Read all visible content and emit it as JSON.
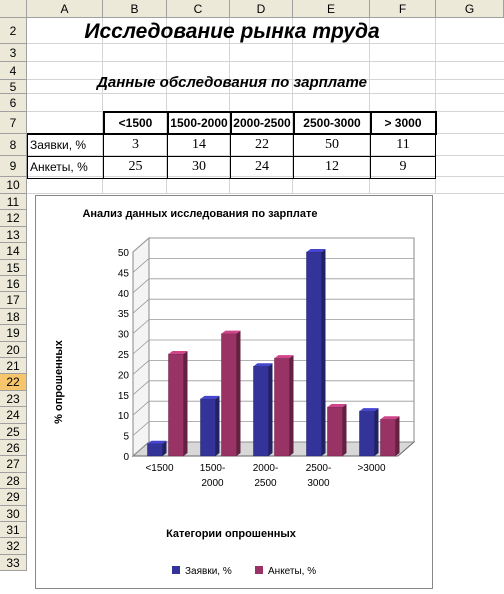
{
  "sheet": {
    "columns": [
      "A",
      "B",
      "C",
      "D",
      "E",
      "F",
      "G"
    ],
    "rows": [
      "2",
      "3",
      "4",
      "5",
      "6",
      "7",
      "8",
      "9",
      "10",
      "11",
      "12",
      "13",
      "14",
      "15",
      "16",
      "17",
      "18",
      "19",
      "20",
      "21",
      "22",
      "23",
      "24",
      "25",
      "26",
      "27",
      "28",
      "29",
      "30",
      "31",
      "32",
      "33"
    ],
    "active_row": "22"
  },
  "main_title": "Исследование рынка труда",
  "subtitle": "Данные обследования по зарплате",
  "table": {
    "headers": [
      "<1500",
      "1500-2000",
      "2000-2500",
      "2500-3000",
      "> 3000"
    ],
    "rows": [
      {
        "label": "Заявки, %",
        "values": [
          "3",
          "14",
          "22",
          "50",
          "11"
        ]
      },
      {
        "label": "Анкеты, %",
        "values": [
          "25",
          "30",
          "24",
          "12",
          "9"
        ]
      }
    ]
  },
  "chart_data": {
    "type": "bar",
    "title": "Анализ данных исследования по зарплате",
    "xlabel": "Категории опрошенных",
    "ylabel": "% опрошенных",
    "categories": [
      "<1500",
      "1500-\n2000",
      "2000-\n2500",
      "2500-\n3000",
      ">3000"
    ],
    "series": [
      {
        "name": "Заявки, %",
        "values": [
          3,
          14,
          22,
          50,
          11
        ],
        "color": "#333399"
      },
      {
        "name": "Анкеты, %",
        "values": [
          25,
          30,
          24,
          12,
          9
        ],
        "color": "#993366"
      }
    ],
    "ylim": [
      0,
      50
    ],
    "yticks": [
      "0",
      "5",
      "10",
      "15",
      "20",
      "25",
      "30",
      "35",
      "40",
      "45",
      "50"
    ],
    "grid": true,
    "legend": "bottom"
  }
}
